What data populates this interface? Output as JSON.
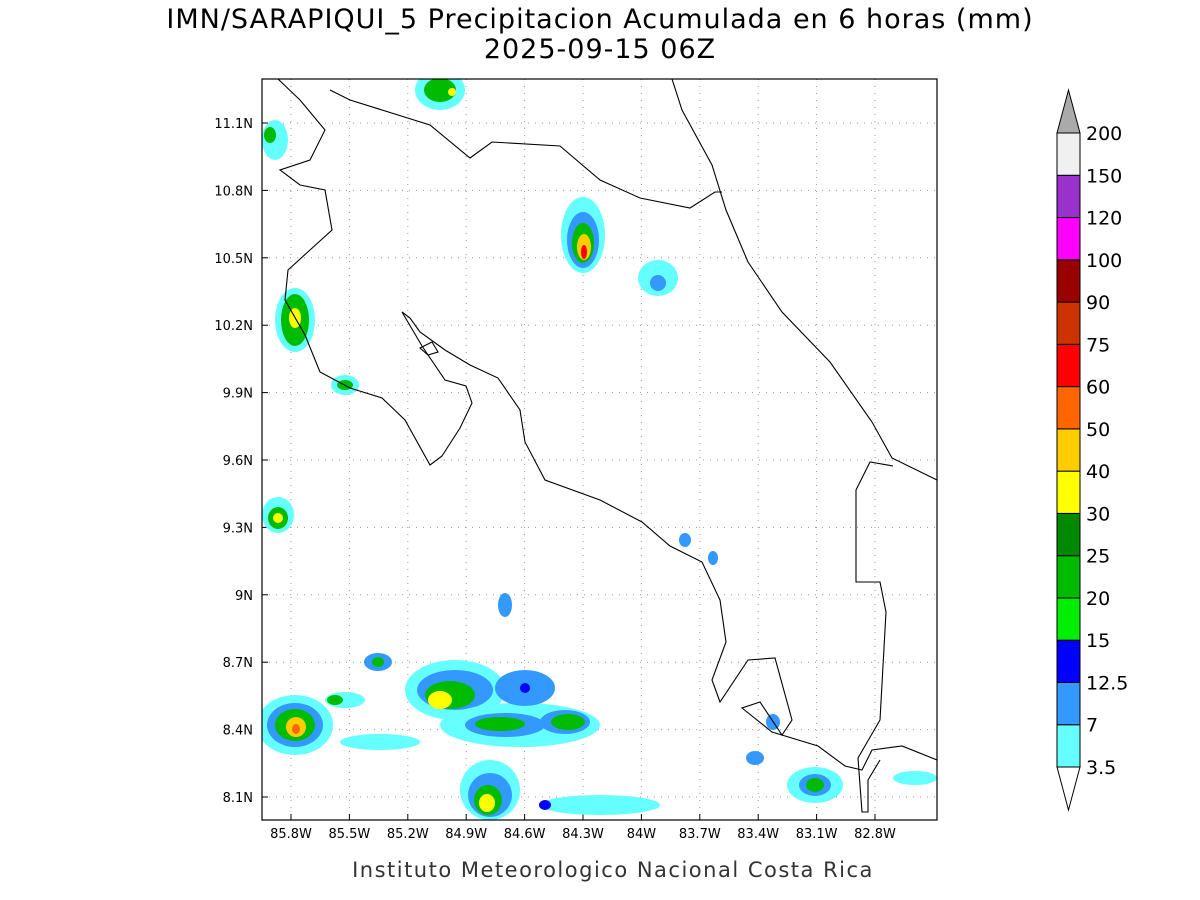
{
  "title": "IMN/SARAPIQUI_5 Precipitacion Acumulada en 6 horas (mm)",
  "subtitle": "2025-09-15 06Z",
  "footer": "Instituto Meteorologico Nacional Costa Rica",
  "lat_ticks": [
    "8.1N",
    "8.4N",
    "8.7N",
    "9N",
    "9.3N",
    "9.6N",
    "9.9N",
    "10.2N",
    "10.5N",
    "10.8N",
    "11.1N"
  ],
  "lon_ticks": [
    "85.8W",
    "85.5W",
    "85.2W",
    "84.9W",
    "84.6W",
    "84.3W",
    "84W",
    "83.7W",
    "83.4W",
    "83.1W",
    "82.8W"
  ],
  "colorbar": {
    "labels": [
      "3.5",
      "7",
      "12.5",
      "15",
      "20",
      "25",
      "30",
      "40",
      "50",
      "60",
      "75",
      "90",
      "100",
      "120",
      "150",
      "200"
    ],
    "colors": [
      "#66ffff",
      "#3399ff",
      "#0000ff",
      "#00ee00",
      "#00bb00",
      "#008800",
      "#ffff00",
      "#ffcc00",
      "#ff6600",
      "#ff0000",
      "#cc3300",
      "#990000",
      "#ff00ff",
      "#9932cc",
      "#f0f0f0"
    ],
    "below_color": "#ffffff",
    "above_color": "#aaaaaa"
  }
}
